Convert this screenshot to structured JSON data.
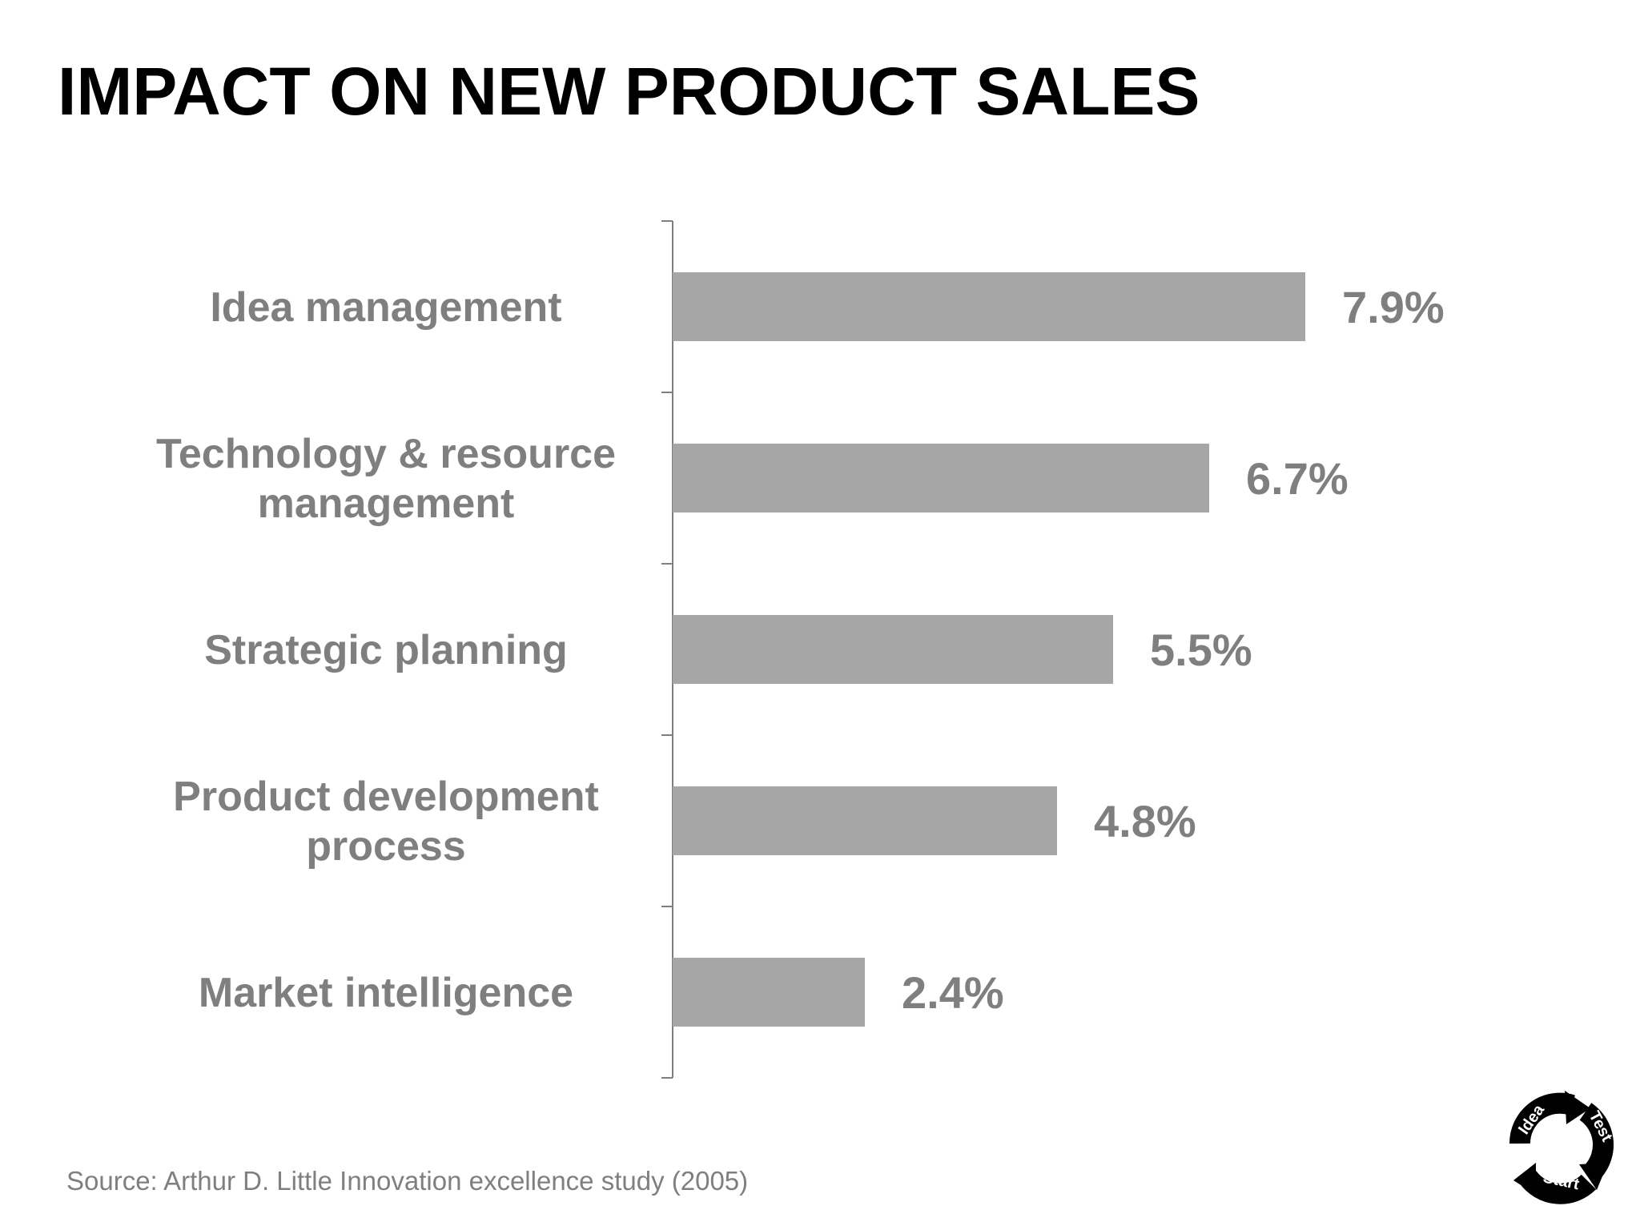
{
  "title": "IMPACT ON NEW PRODUCT SALES",
  "source": "Source: Arthur D. Little Innovation excellence study (2005)",
  "colors": {
    "bar": "#a6a6a6",
    "label": "#7f7f7f",
    "axis": "#7f7f7f",
    "title": "#000000"
  },
  "logo": {
    "icon": "idea-test-start-cycle-icon",
    "words": [
      "Idea",
      "Test",
      "Start"
    ]
  },
  "chart_data": {
    "type": "bar",
    "orientation": "horizontal",
    "title": "IMPACT ON NEW PRODUCT SALES",
    "xlabel": "",
    "ylabel": "",
    "grid": false,
    "xlim": [
      0,
      10.5
    ],
    "unit": "%",
    "categories": [
      [
        "Idea management"
      ],
      [
        "Technology & resource",
        "management"
      ],
      [
        "Strategic planning"
      ],
      [
        "Product development",
        "process"
      ],
      [
        "Market intelligence"
      ]
    ],
    "values": [
      7.9,
      6.7,
      5.5,
      4.8,
      2.4
    ],
    "value_labels": [
      "7.9%",
      "6.7%",
      "5.5%",
      "4.8%",
      "2.4%"
    ]
  }
}
